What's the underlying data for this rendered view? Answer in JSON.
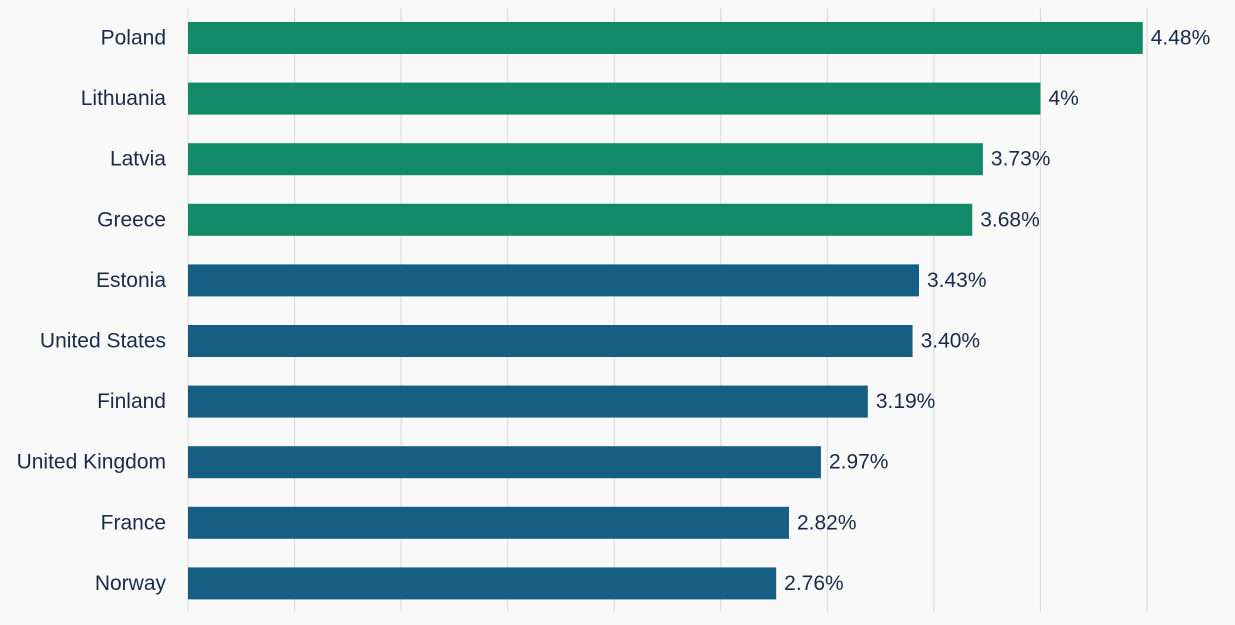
{
  "chart_data": {
    "type": "bar",
    "orientation": "horizontal",
    "categories": [
      "Poland",
      "Lithuania",
      "Latvia",
      "Greece",
      "Estonia",
      "United States",
      "Finland",
      "United Kingdom",
      "France",
      "Norway"
    ],
    "values": [
      4.48,
      4.0,
      3.73,
      3.68,
      3.43,
      3.4,
      3.19,
      2.97,
      2.82,
      2.76
    ],
    "value_labels": [
      "4.48%",
      "4%",
      "3.73%",
      "3.68%",
      "3.43%",
      "3.40%",
      "3.19%",
      "2.97%",
      "2.82%",
      "2.76%"
    ],
    "bar_colors": [
      "#128a67",
      "#128a67",
      "#128a67",
      "#128a67",
      "#165f82",
      "#165f82",
      "#165f82",
      "#165f82",
      "#165f82",
      "#165f82"
    ],
    "xlim": [
      0,
      4.5
    ],
    "grid": true,
    "title": "",
    "xlabel": "",
    "ylabel": ""
  }
}
